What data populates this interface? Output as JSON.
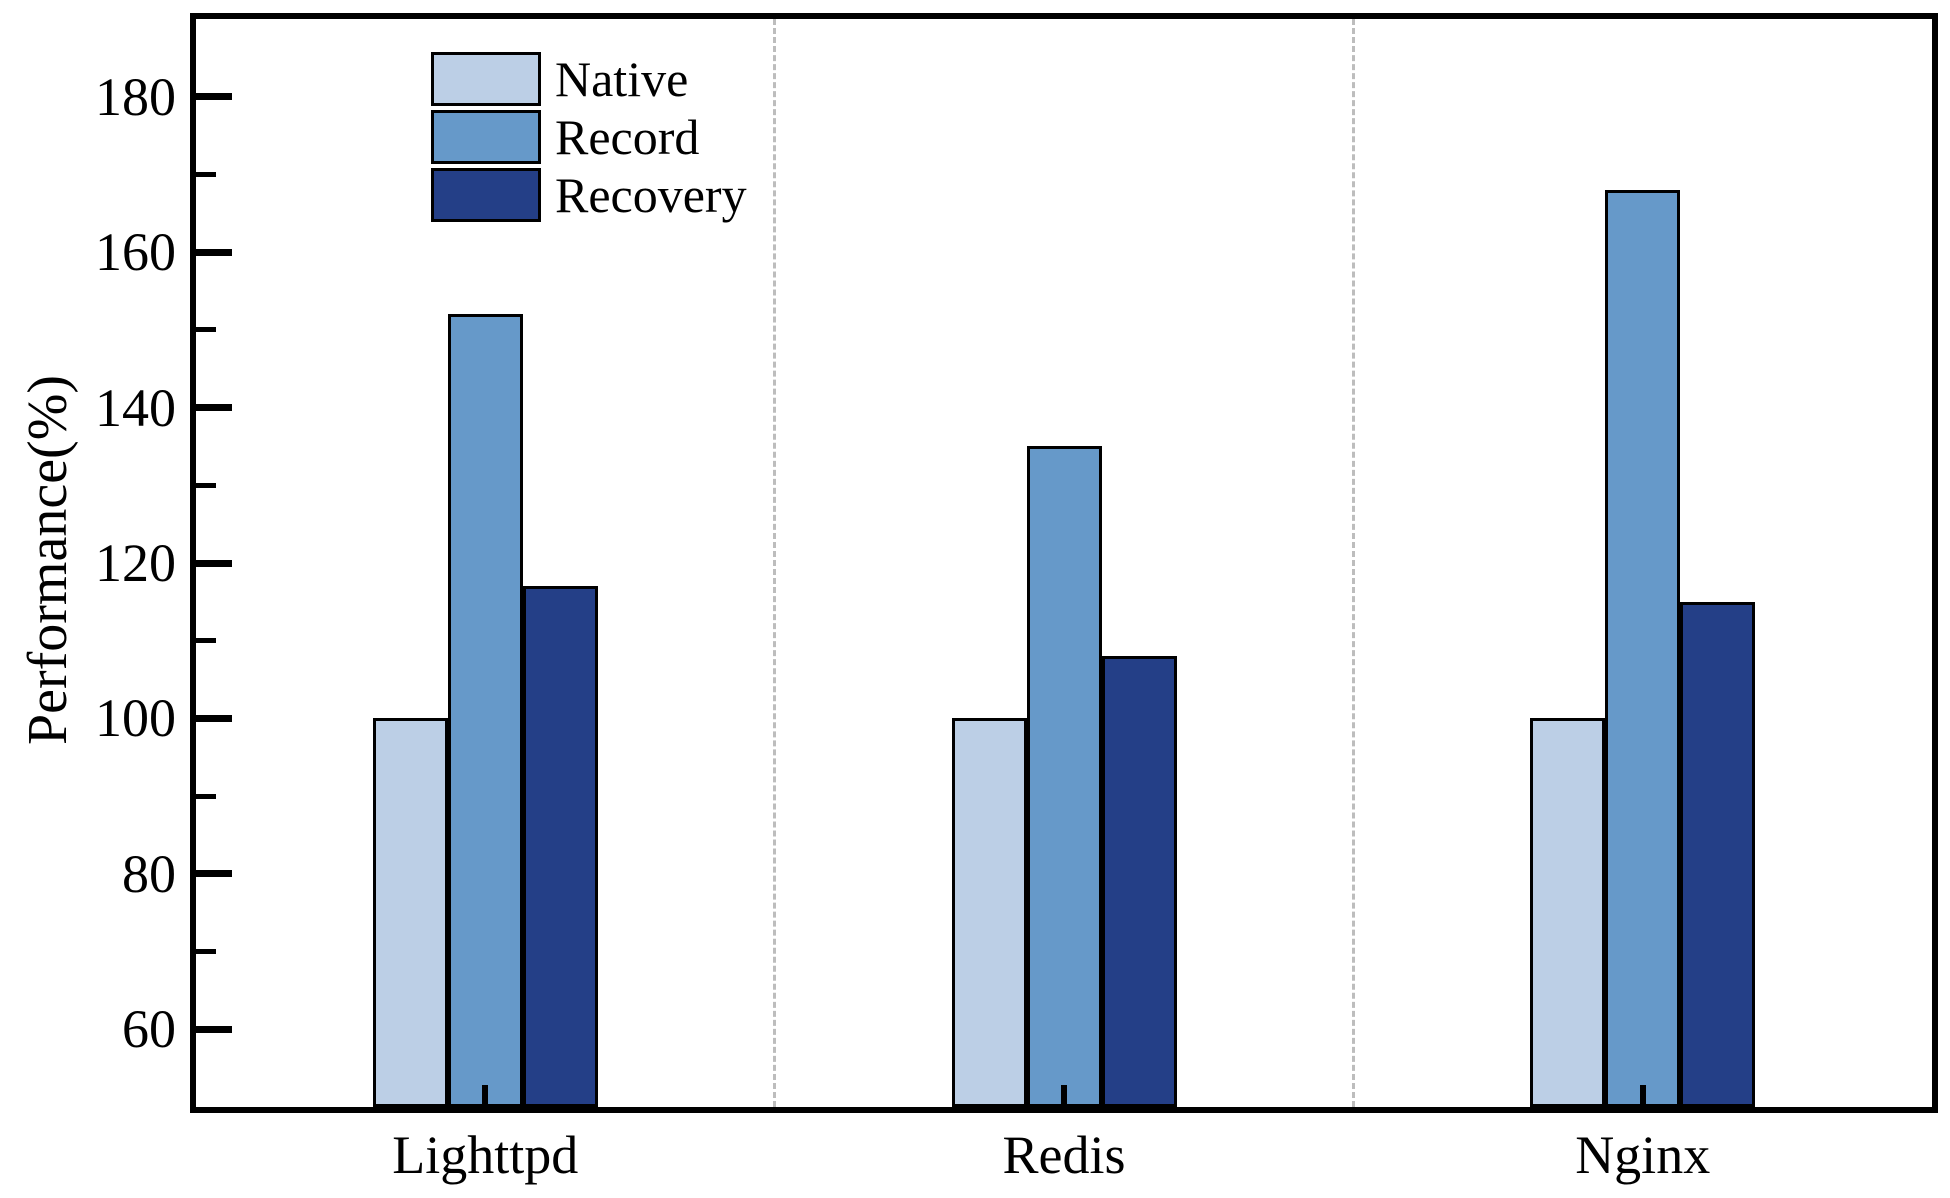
{
  "chart_data": {
    "type": "bar",
    "title": "",
    "categories": [
      "Lighttpd",
      "Redis",
      "Nginx"
    ],
    "series": [
      {
        "name": "Native",
        "color": "#BCCFE6",
        "values": [
          100,
          100,
          100
        ]
      },
      {
        "name": "Record",
        "color": "#6699C9",
        "values": [
          152,
          135,
          168
        ]
      },
      {
        "name": "Recovery",
        "color": "#243F87",
        "values": [
          117,
          108,
          115
        ]
      }
    ],
    "xlabel": "",
    "ylabel": "Performance(%)",
    "ylim": [
      50,
      190
    ],
    "yticks_major": [
      60,
      80,
      100,
      120,
      140,
      160,
      180
    ],
    "ytick_minor_step": 10,
    "legend_position": "upper-left",
    "grid": "vertical dashed separators between category groups",
    "bar_outline_color": "#000000",
    "separator_color": "#bdbdbd",
    "axis_color": "#000000"
  }
}
